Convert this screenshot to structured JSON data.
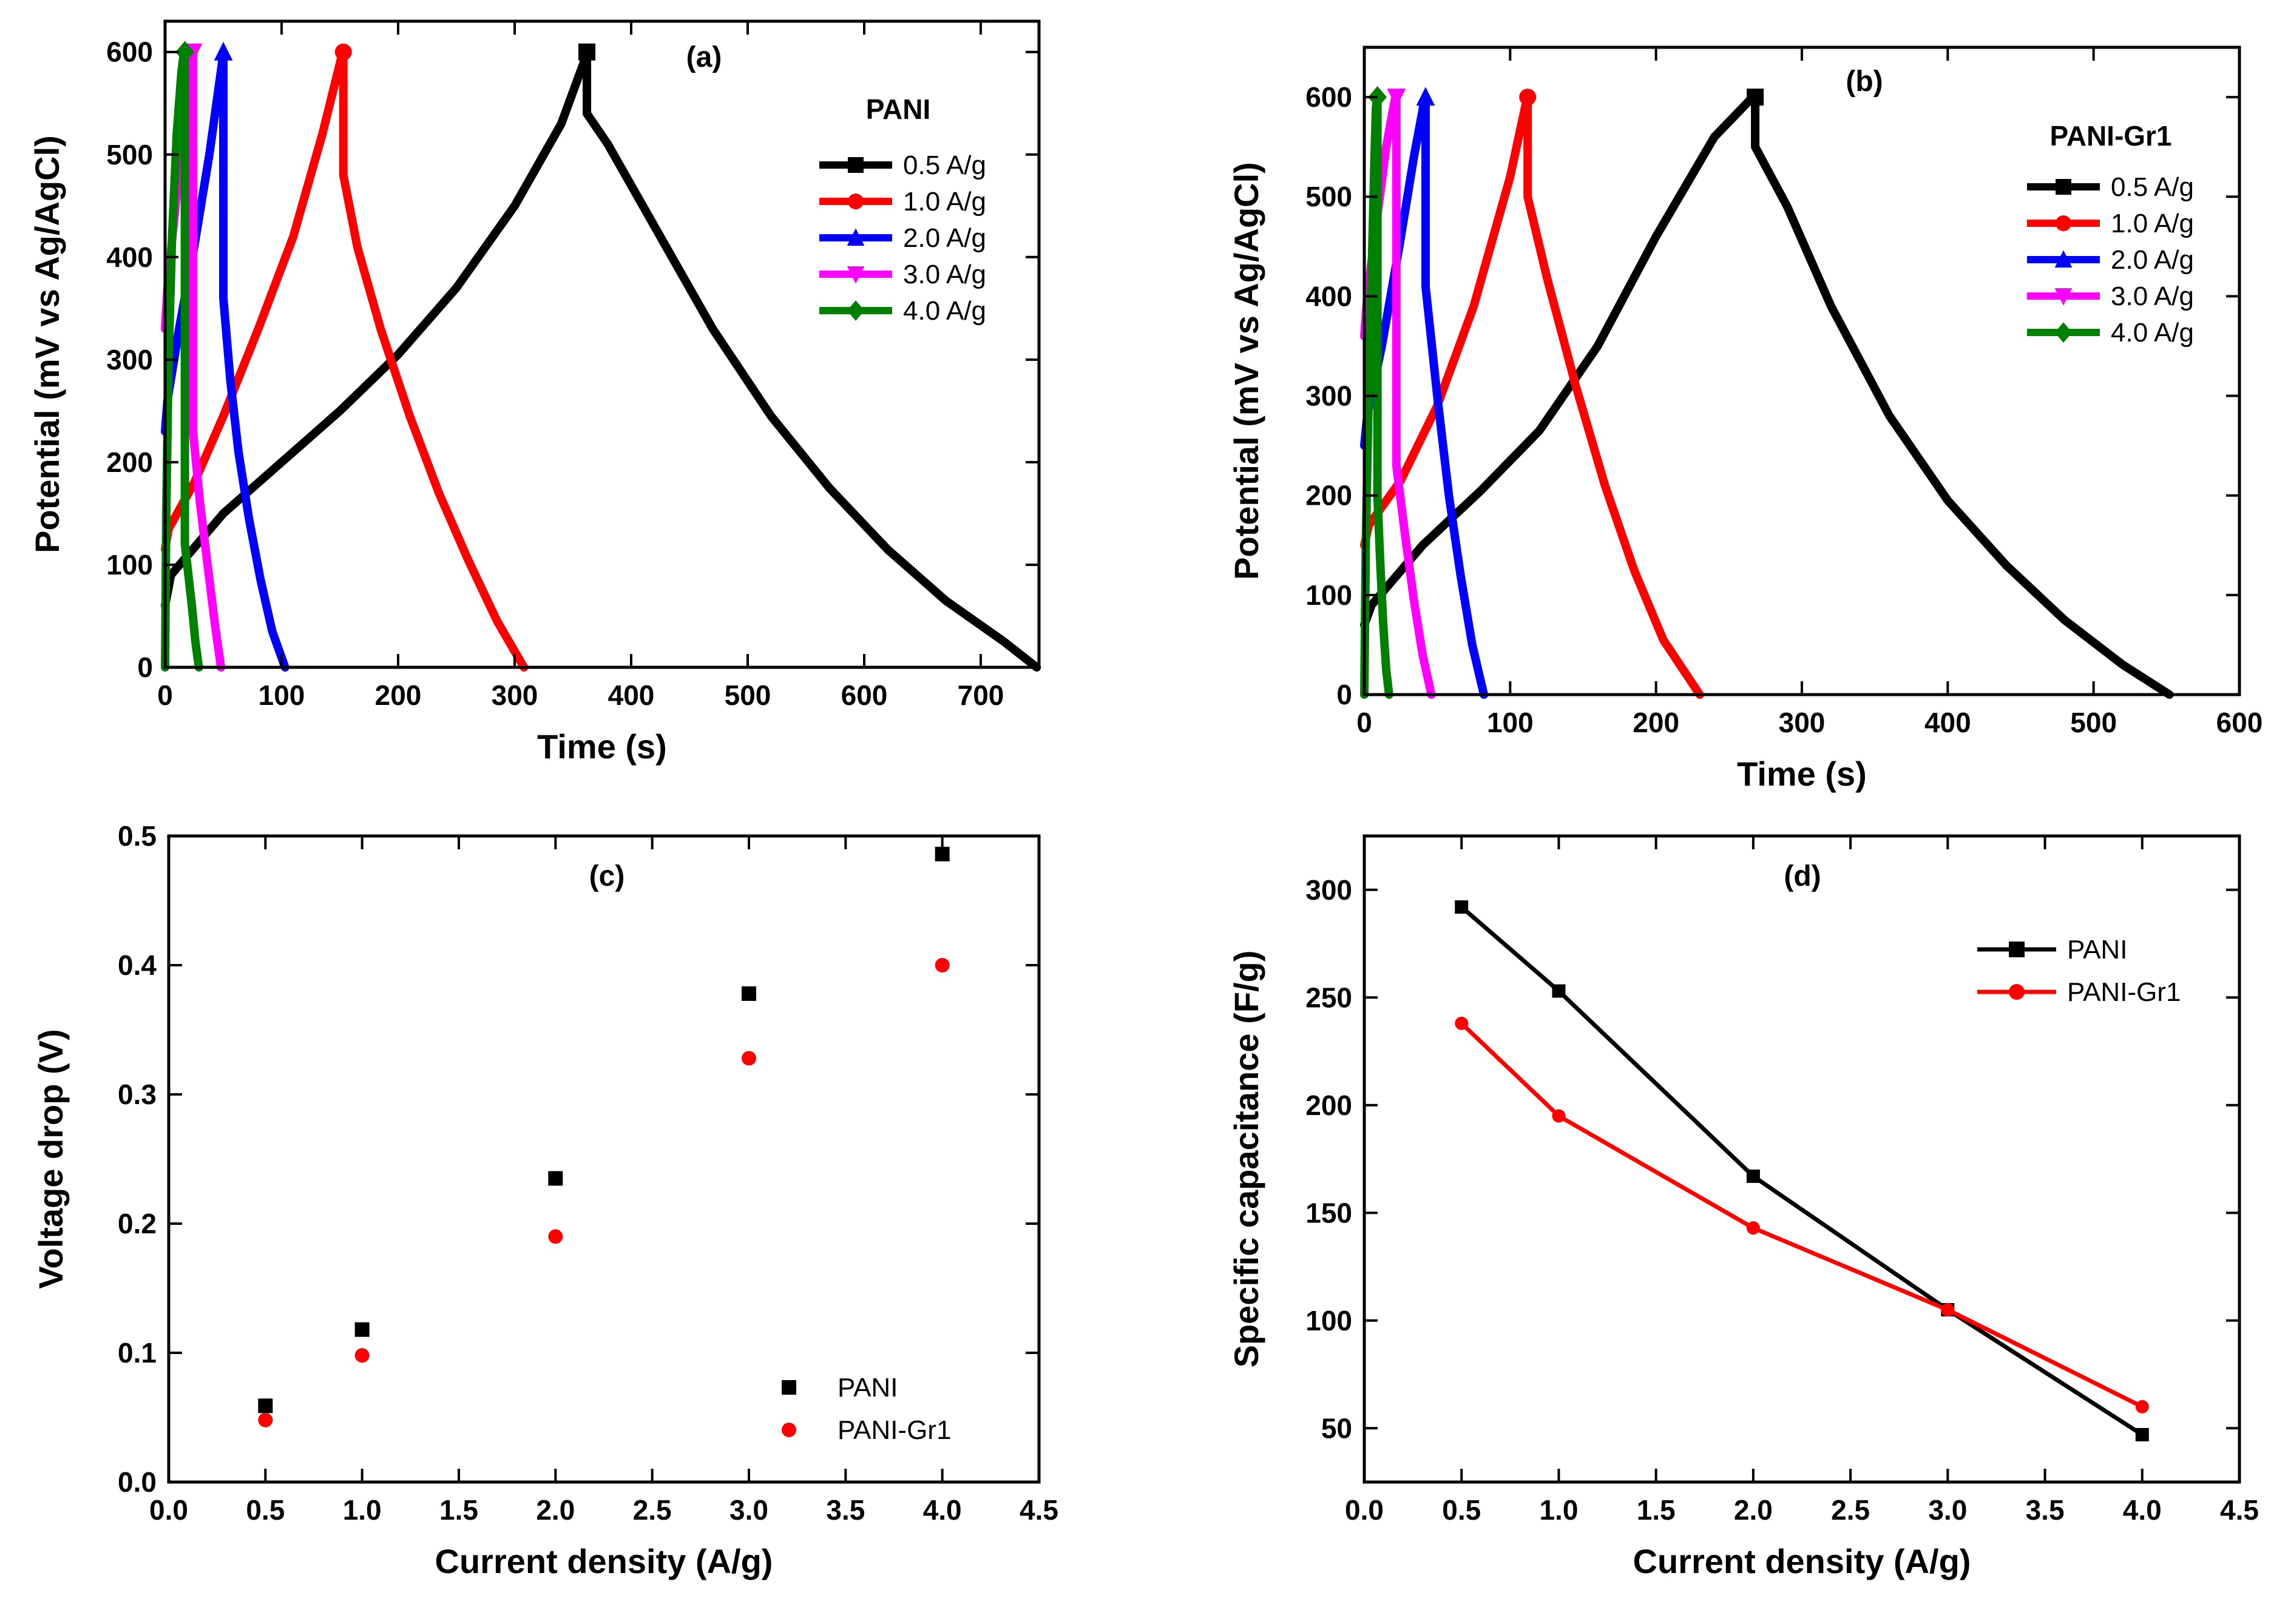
{
  "chart_data": [
    {
      "panel": "(a)",
      "type": "line",
      "xlabel": "Time (s)",
      "ylabel": "Potential (mV vs Ag/AgCl)",
      "xlim": [
        0,
        750
      ],
      "ylim": [
        0,
        630
      ],
      "xticks": [
        0,
        100,
        200,
        300,
        400,
        500,
        600,
        700
      ],
      "yticks": [
        0,
        100,
        200,
        300,
        400,
        500,
        600
      ],
      "legend_title": "PANI",
      "legend_position": "top-right",
      "series": [
        {
          "name": "0.5 A/g",
          "color": "#000000",
          "marker": "square",
          "x": [
            0,
            5,
            50,
            100,
            150,
            200,
            250,
            300,
            340,
            361,
            362,
            362,
            380,
            420,
            470,
            520,
            570,
            620,
            670,
            720,
            748
          ],
          "y": [
            60,
            90,
            150,
            200,
            250,
            305,
            370,
            450,
            530,
            595,
            600,
            540,
            510,
            430,
            330,
            245,
            175,
            115,
            65,
            25,
            0
          ]
        },
        {
          "name": "1.0 A/g",
          "color": "#ff0000",
          "marker": "circle",
          "x": [
            0,
            3,
            25,
            50,
            80,
            110,
            135,
            152,
            153,
            153,
            165,
            185,
            210,
            235,
            260,
            285,
            308
          ],
          "y": [
            115,
            135,
            180,
            245,
            330,
            420,
            520,
            598,
            600,
            480,
            410,
            330,
            245,
            170,
            105,
            45,
            0
          ]
        },
        {
          "name": "2.0 A/g",
          "color": "#0000ff",
          "marker": "triangle-up",
          "x": [
            0,
            2,
            12,
            25,
            38,
            49,
            50,
            50,
            56,
            63,
            72,
            82,
            92,
            103
          ],
          "y": [
            230,
            260,
            330,
            410,
            500,
            590,
            600,
            360,
            280,
            210,
            145,
            85,
            35,
            0
          ]
        },
        {
          "name": "3.0 A/g",
          "color": "#ff00ff",
          "marker": "triangle-down",
          "x": [
            0,
            2,
            8,
            15,
            23,
            24,
            24,
            30,
            37,
            43,
            48
          ],
          "y": [
            330,
            370,
            440,
            520,
            598,
            600,
            230,
            160,
            95,
            40,
            0
          ]
        },
        {
          "name": "4.0 A/g",
          "color": "#008000",
          "marker": "diamond",
          "x": [
            0,
            1,
            3,
            6,
            10,
            14,
            16,
            17,
            17,
            20,
            23,
            26,
            29
          ],
          "y": [
            0,
            150,
            300,
            420,
            520,
            580,
            598,
            600,
            120,
            90,
            60,
            25,
            0
          ]
        }
      ]
    },
    {
      "panel": "(b)",
      "type": "line",
      "xlabel": "Time (s)",
      "ylabel": "Potential (mV vs Ag/AgCl)",
      "xlim": [
        0,
        600
      ],
      "ylim": [
        0,
        650
      ],
      "xticks": [
        0,
        100,
        200,
        300,
        400,
        500,
        600
      ],
      "yticks": [
        0,
        100,
        200,
        300,
        400,
        500,
        600
      ],
      "legend_title": "PANI-Gr1",
      "legend_position": "top-right",
      "series": [
        {
          "name": "0.5 A/g",
          "color": "#000000",
          "marker": "square",
          "x": [
            0,
            5,
            40,
            80,
            120,
            160,
            200,
            240,
            265,
            268,
            268,
            290,
            320,
            360,
            400,
            440,
            480,
            520,
            552
          ],
          "y": [
            70,
            90,
            150,
            205,
            265,
            350,
            460,
            560,
            598,
            600,
            550,
            490,
            390,
            280,
            195,
            130,
            75,
            30,
            0
          ]
        },
        {
          "name": "1.0 A/g",
          "color": "#ff0000",
          "marker": "circle",
          "x": [
            0,
            3,
            25,
            50,
            75,
            100,
            111,
            112,
            112,
            125,
            145,
            165,
            185,
            205,
            230
          ],
          "y": [
            150,
            170,
            215,
            290,
            390,
            520,
            595,
            600,
            500,
            420,
            310,
            210,
            125,
            55,
            0
          ]
        },
        {
          "name": "2.0 A/g",
          "color": "#0000ff",
          "marker": "triangle-up",
          "x": [
            0,
            2,
            12,
            24,
            34,
            41,
            42,
            42,
            50,
            58,
            66,
            74,
            82
          ],
          "y": [
            250,
            280,
            350,
            450,
            540,
            595,
            600,
            410,
            300,
            200,
            120,
            50,
            0
          ]
        },
        {
          "name": "3.0 A/g",
          "color": "#ff00ff",
          "marker": "triangle-down",
          "x": [
            0,
            2,
            8,
            15,
            21,
            22,
            22,
            28,
            34,
            40,
            46
          ],
          "y": [
            360,
            400,
            470,
            550,
            598,
            600,
            230,
            160,
            95,
            40,
            0
          ]
        },
        {
          "name": "4.0 A/g",
          "color": "#008000",
          "marker": "diamond",
          "x": [
            0,
            1,
            3,
            5,
            7,
            8,
            9,
            9,
            11,
            13,
            15,
            17
          ],
          "y": [
            0,
            150,
            300,
            420,
            540,
            590,
            600,
            200,
            130,
            70,
            25,
            0
          ]
        }
      ]
    },
    {
      "panel": "(c)",
      "type": "scatter",
      "xlabel": "Current density (A/g)",
      "ylabel": "Voltage drop (V)",
      "xlim": [
        0.0,
        4.5
      ],
      "ylim": [
        0.0,
        0.5
      ],
      "xticks": [
        "0.0",
        "0.5",
        "1.0",
        "1.5",
        "2.0",
        "2.5",
        "3.0",
        "3.5",
        "4.0",
        "4.5"
      ],
      "yticks": [
        "0.0",
        "0.1",
        "0.2",
        "0.3",
        "0.4",
        "0.5"
      ],
      "legend_position": "bottom-right",
      "series": [
        {
          "name": "PANI",
          "color": "#000000",
          "marker": "square",
          "x": [
            0.5,
            1.0,
            2.0,
            3.0,
            4.0
          ],
          "y": [
            0.059,
            0.118,
            0.235,
            0.378,
            0.486
          ]
        },
        {
          "name": "PANI-Gr1",
          "color": "#ff0000",
          "marker": "circle",
          "x": [
            0.5,
            1.0,
            2.0,
            3.0,
            4.0
          ],
          "y": [
            0.048,
            0.098,
            0.19,
            0.328,
            0.4
          ]
        }
      ]
    },
    {
      "panel": "(d)",
      "type": "line",
      "xlabel": "Current density (A/g)",
      "ylabel": "Specific capacitance (F/g)",
      "xlim": [
        0.0,
        4.5
      ],
      "ylim": [
        25,
        325
      ],
      "xticks": [
        "0.0",
        "0.5",
        "1.0",
        "1.5",
        "2.0",
        "2.5",
        "3.0",
        "3.5",
        "4.0",
        "4.5"
      ],
      "yticks": [
        50,
        100,
        150,
        200,
        250,
        300
      ],
      "legend_position": "top-right",
      "series": [
        {
          "name": "PANI",
          "color": "#000000",
          "marker": "square",
          "x": [
            0.5,
            1.0,
            2.0,
            3.0,
            4.0
          ],
          "y": [
            292,
            253,
            167,
            105,
            47
          ]
        },
        {
          "name": "PANI-Gr1",
          "color": "#ff0000",
          "marker": "circle",
          "x": [
            0.5,
            1.0,
            2.0,
            3.0,
            4.0
          ],
          "y": [
            238,
            195,
            143,
            105,
            60
          ]
        }
      ]
    }
  ]
}
